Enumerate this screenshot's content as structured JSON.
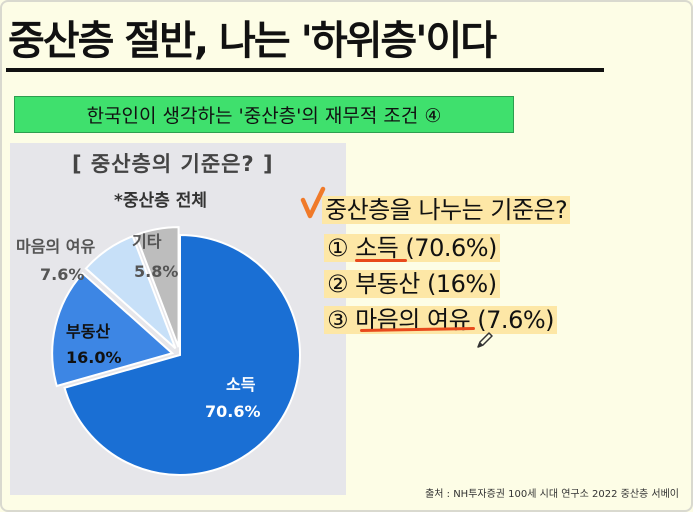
{
  "header": {
    "title": "중산층 절반, 나는 '하위층'이다",
    "subtitle": "한국인이 생각하는 '중산층'의 재무적 조건 ④"
  },
  "chart_data": {
    "type": "pie",
    "title": "[ 중산층의 기준은? ]",
    "subtitle": "*중산층 전체",
    "slices": [
      {
        "name": "소득",
        "value": 70.6,
        "label_value": "70.6%",
        "color": "#1a6fd4"
      },
      {
        "name": "부동산",
        "value": 16.0,
        "label_value": "16.0%",
        "color": "#3d86e4"
      },
      {
        "name": "마음의 여유",
        "value": 7.6,
        "label_value": "7.6%",
        "color": "#c7e0f8"
      },
      {
        "name": "기타",
        "value": 5.8,
        "label_value": "5.8%",
        "color": "#bdbdbd"
      }
    ]
  },
  "notes": {
    "question": "중산층을 나누는 기준은?",
    "item1": "① 소득 (70.6%)",
    "item2": "② 부동산 (16%)",
    "item3": "③ 마음의 여유 (7.6%)"
  },
  "colors": {
    "highlight": "#fde7a6",
    "accent_red": "#e84a1c",
    "subtitle_bg": "#3fe06d"
  },
  "footer": {
    "source": "출처 : NH투자증권 100세 시대 연구소 2022 중산층 서베이"
  }
}
